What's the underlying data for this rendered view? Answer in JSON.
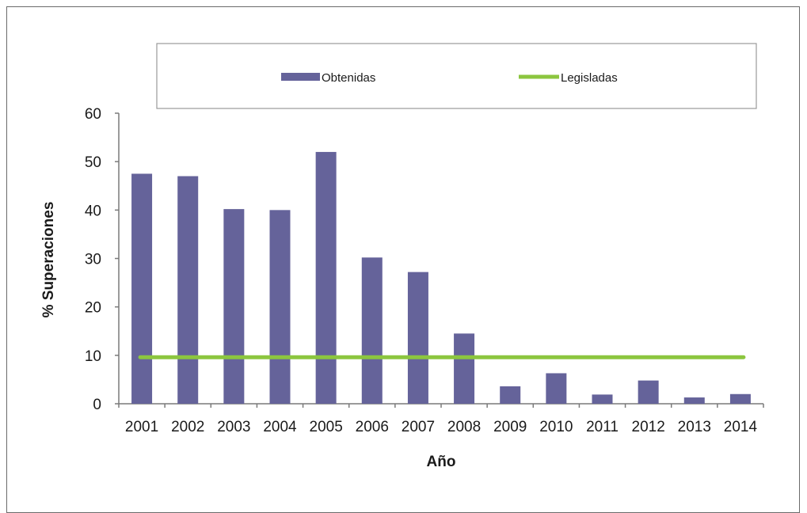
{
  "chart_data": {
    "type": "bar",
    "categories": [
      "2001",
      "2002",
      "2003",
      "2004",
      "2005",
      "2006",
      "2007",
      "2008",
      "2009",
      "2010",
      "2011",
      "2012",
      "2013",
      "2014"
    ],
    "series": [
      {
        "name": "Obtenidas",
        "kind": "bar",
        "color": "#65639a",
        "values": [
          47.5,
          47,
          40.2,
          40,
          52,
          30.2,
          27.2,
          14.5,
          3.6,
          6.3,
          1.9,
          4.8,
          1.3,
          2.0
        ]
      },
      {
        "name": "Legisladas",
        "kind": "line",
        "color": "#8cc63f",
        "values": [
          9.6,
          9.6,
          9.6,
          9.6,
          9.6,
          9.6,
          9.6,
          9.6,
          9.6,
          9.6,
          9.6,
          9.6,
          9.6,
          9.6
        ]
      }
    ],
    "title": "",
    "xlabel": "Año",
    "ylabel": "% Superaciones",
    "ylim": [
      0,
      60
    ],
    "yticks": [
      "0",
      "10",
      "20",
      "30",
      "40",
      "50",
      "60"
    ],
    "grid": false,
    "legend_position": "top"
  }
}
